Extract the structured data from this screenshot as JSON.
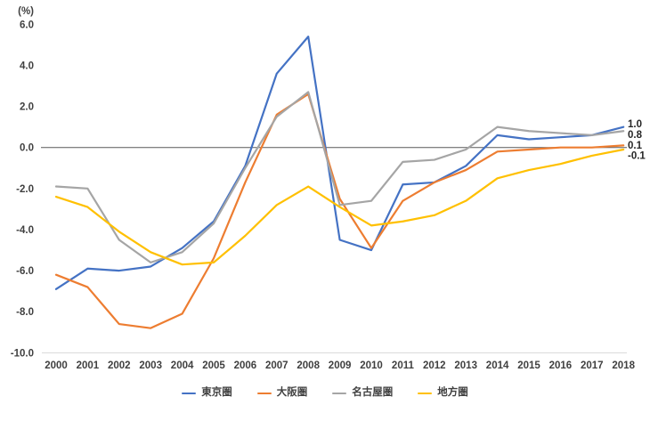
{
  "chart": {
    "unit_label": "(%)",
    "end_labels": [
      {
        "series_id": "tokyo-area",
        "text": "1.0"
      },
      {
        "series_id": "nagoya-area",
        "text": "0.8"
      },
      {
        "series_id": "osaka-area",
        "text": "0.1"
      },
      {
        "series_id": "regional-area",
        "text": "-0.1"
      }
    ],
    "colors": {
      "zero_line": "#595959",
      "baseline": "#D9D9D9",
      "tick_text": "#404040",
      "end_label_text": "#262626"
    }
  },
  "chart_data": {
    "type": "line",
    "title": "",
    "xlabel": "",
    "ylabel": "(%)",
    "x": [
      2000,
      2001,
      2002,
      2003,
      2004,
      2005,
      2006,
      2007,
      2008,
      2009,
      2010,
      2011,
      2012,
      2013,
      2014,
      2015,
      2016,
      2017,
      2018
    ],
    "series": [
      {
        "id": "tokyo-area",
        "name": "東京圏",
        "color": "#4472C4",
        "values": [
          -6.9,
          -5.9,
          -6.0,
          -5.8,
          -4.9,
          -3.6,
          -0.9,
          3.6,
          5.4,
          -4.5,
          -5.0,
          -1.8,
          -1.7,
          -0.9,
          0.6,
          0.4,
          0.5,
          0.6,
          1.0
        ]
      },
      {
        "id": "osaka-area",
        "name": "大阪圏",
        "color": "#ED7D31",
        "values": [
          -6.2,
          -6.8,
          -8.6,
          -8.8,
          -8.1,
          -5.4,
          -1.7,
          1.6,
          2.6,
          -2.5,
          -4.9,
          -2.6,
          -1.7,
          -1.1,
          -0.2,
          -0.1,
          0.0,
          0.0,
          0.1
        ]
      },
      {
        "id": "nagoya-area",
        "name": "名古屋圏",
        "color": "#A5A5A5",
        "values": [
          -1.9,
          -2.0,
          -4.5,
          -5.6,
          -5.1,
          -3.7,
          -1.0,
          1.5,
          2.7,
          -2.8,
          -2.6,
          -0.7,
          -0.6,
          -0.1,
          1.0,
          0.8,
          0.7,
          0.6,
          0.8
        ]
      },
      {
        "id": "regional-area",
        "name": "地方圏",
        "color": "#FFC000",
        "values": [
          -2.4,
          -2.9,
          -4.1,
          -5.1,
          -5.7,
          -5.6,
          -4.3,
          -2.8,
          -1.9,
          -2.9,
          -3.8,
          -3.6,
          -3.3,
          -2.6,
          -1.5,
          -1.1,
          -0.8,
          -0.4,
          -0.1
        ]
      }
    ],
    "ylim": [
      -10.0,
      6.0
    ],
    "yticks": [
      6,
      4,
      2,
      0,
      -2,
      -4,
      -6,
      -8,
      -10
    ],
    "ytick_labels": [
      "6.0",
      "4.0",
      "2.0",
      "0.0",
      "-2.0",
      "-4.0",
      "-6.0",
      "-8.0",
      "-10.0"
    ],
    "xtick_labels": [
      "2000",
      "2001",
      "2002",
      "2003",
      "2004",
      "2005",
      "2006",
      "2007",
      "2008",
      "2009",
      "2010",
      "2011",
      "2012",
      "2013",
      "2014",
      "2015",
      "2016",
      "2017",
      "2018"
    ],
    "grid": false,
    "legend_position": "bottom"
  }
}
